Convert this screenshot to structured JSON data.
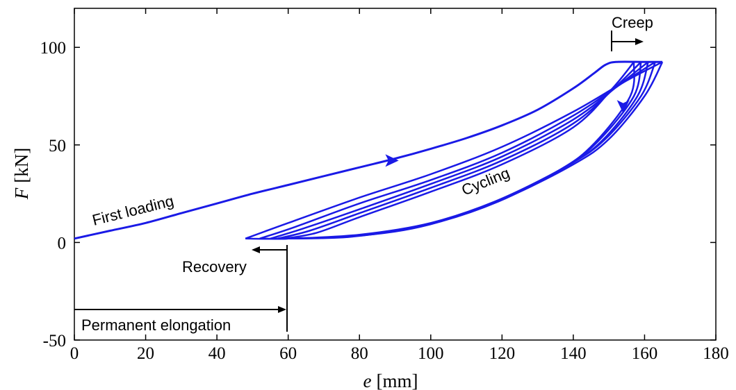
{
  "chart_data": {
    "type": "line",
    "xlabel_var": "e",
    "xlabel_unit": "[mm]",
    "ylabel_var": "F",
    "ylabel_unit": "[kN]",
    "xlim": [
      0,
      180
    ],
    "ylim": [
      -50,
      120
    ],
    "xticks": [
      0,
      20,
      40,
      60,
      80,
      100,
      120,
      140,
      160,
      180
    ],
    "yticks": [
      -50,
      0,
      50,
      100
    ],
    "grid": false,
    "colors": {
      "series": "#1a1ae6",
      "annotation": "#000000"
    },
    "series": [
      {
        "x": [
          0,
          10,
          20,
          30,
          40,
          50,
          60,
          70,
          80,
          90,
          100,
          110,
          120,
          130,
          140,
          146,
          149,
          152,
          160,
          165
        ],
        "y": [
          2,
          6,
          10,
          15,
          20,
          25,
          29.5,
          34,
          38.5,
          43,
          48,
          53.5,
          60,
          68,
          79,
          87,
          91,
          92.5,
          92.5,
          92.5
        ]
      }
    ],
    "cycles": [
      {
        "max": [
          165,
          92.5
        ],
        "min": [
          48,
          2
        ],
        "loading": [
          [
            48,
            2
          ],
          [
            60,
            10
          ],
          [
            80,
            23
          ],
          [
            100,
            35
          ],
          [
            120,
            49
          ],
          [
            140,
            67
          ],
          [
            155,
            83
          ],
          [
            165,
            92.5
          ]
        ],
        "unloading": [
          [
            165,
            92.5
          ],
          [
            160,
            75
          ],
          [
            150,
            53
          ],
          [
            140,
            40
          ],
          [
            120,
            22
          ],
          [
            100,
            10
          ],
          [
            80,
            4
          ],
          [
            60,
            2
          ],
          [
            48,
            2
          ]
        ]
      },
      {
        "max": [
          163,
          92.5
        ],
        "min": [
          52,
          2
        ],
        "loading": [
          [
            52,
            2
          ],
          [
            62,
            8
          ],
          [
            80,
            20
          ],
          [
            100,
            32
          ],
          [
            120,
            46
          ],
          [
            140,
            65
          ],
          [
            154,
            82
          ],
          [
            163,
            92.5
          ]
        ],
        "unloading": [
          [
            163,
            92.5
          ],
          [
            159,
            75
          ],
          [
            149,
            53
          ],
          [
            139,
            40
          ],
          [
            119,
            21
          ],
          [
            99,
            9
          ],
          [
            79,
            3.5
          ],
          [
            60,
            2
          ],
          [
            52,
            2
          ]
        ]
      },
      {
        "max": [
          161,
          92.5
        ],
        "min": [
          55,
          2
        ],
        "loading": [
          [
            55,
            2
          ],
          [
            64,
            7
          ],
          [
            80,
            17
          ],
          [
            100,
            30
          ],
          [
            120,
            44
          ],
          [
            140,
            63
          ],
          [
            153,
            81
          ],
          [
            161,
            92.5
          ]
        ],
        "unloading": [
          [
            161,
            92.5
          ],
          [
            158,
            75
          ],
          [
            148,
            52
          ],
          [
            138,
            39
          ],
          [
            118,
            21
          ],
          [
            98,
            9
          ],
          [
            78,
            3
          ],
          [
            60,
            2
          ],
          [
            55,
            2
          ]
        ]
      },
      {
        "max": [
          159,
          92.5
        ],
        "min": [
          57,
          2
        ],
        "loading": [
          [
            57,
            2
          ],
          [
            66,
            6
          ],
          [
            80,
            15
          ],
          [
            100,
            28
          ],
          [
            120,
            42
          ],
          [
            140,
            61
          ],
          [
            152,
            80
          ],
          [
            159,
            92.5
          ]
        ],
        "unloading": [
          [
            159,
            92.5
          ],
          [
            157,
            75
          ],
          [
            147,
            52
          ],
          [
            137,
            38
          ],
          [
            117,
            20
          ],
          [
            97,
            8
          ],
          [
            77,
            3
          ],
          [
            60,
            2
          ],
          [
            57,
            2
          ]
        ]
      },
      {
        "max": [
          157,
          92.5
        ],
        "min": [
          59,
          2
        ],
        "loading": [
          [
            59,
            2
          ],
          [
            68,
            5
          ],
          [
            80,
            13
          ],
          [
            100,
            26
          ],
          [
            120,
            40
          ],
          [
            140,
            59
          ],
          [
            151,
            79
          ],
          [
            157,
            92.5
          ]
        ],
        "unloading": [
          [
            157,
            92.5
          ],
          [
            156,
            75
          ],
          [
            146,
            51
          ],
          [
            136,
            37
          ],
          [
            116,
            19
          ],
          [
            96,
            8
          ],
          [
            76,
            3
          ],
          [
            60,
            2
          ],
          [
            59,
            2
          ]
        ]
      }
    ],
    "direction_markers": [
      {
        "x": 90,
        "y": 42,
        "dir": "right"
      },
      {
        "x": 154,
        "y": 68,
        "dir": "down"
      }
    ],
    "annotations": {
      "first_loading": "First loading",
      "cycling": "Cycling",
      "creep": "Creep",
      "recovery": "Recovery",
      "permanent_elongation": "Permanent elongation"
    }
  }
}
